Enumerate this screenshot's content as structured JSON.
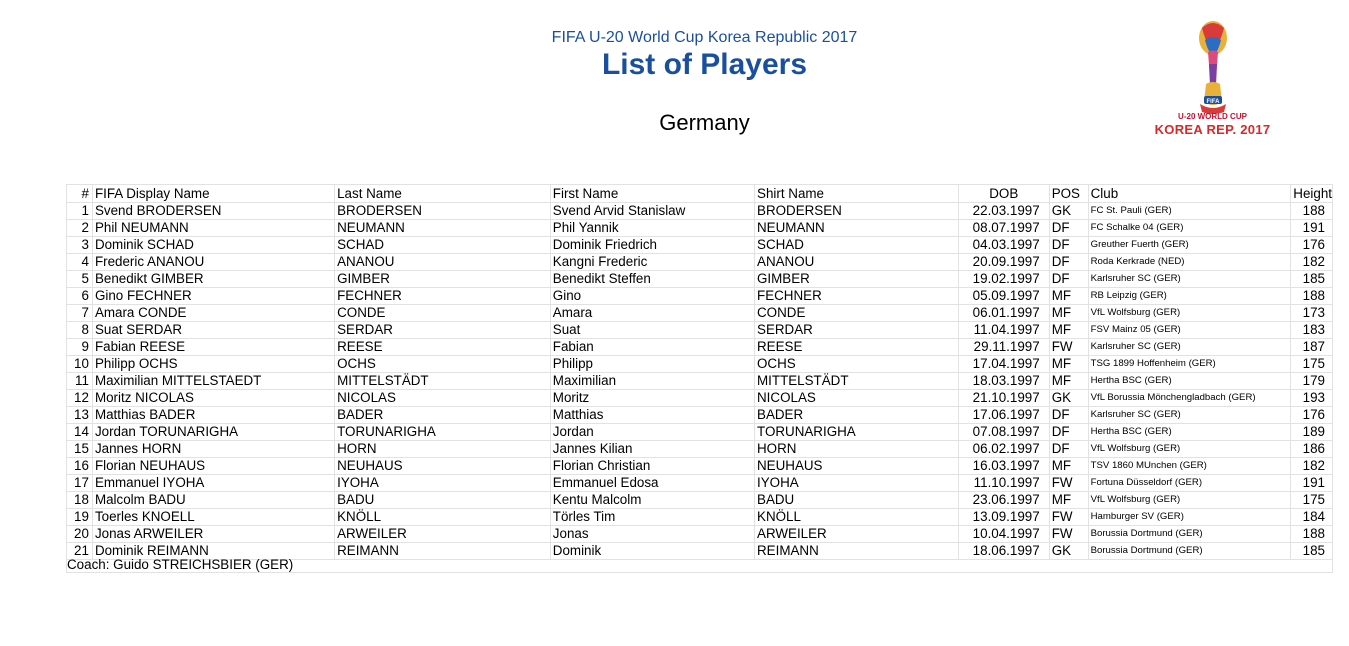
{
  "header": {
    "event": "FIFA U-20 World Cup Korea Republic 2017",
    "title": "List of Players",
    "country": "Germany"
  },
  "logo": {
    "line1": "U-20 WORLD CUP",
    "line2": "KOREA REP. 2017",
    "badge": "FIFA",
    "colors": {
      "primary": "#c8102e",
      "gold": "#e8b23a",
      "blue": "#1a4f9e"
    }
  },
  "table": {
    "columns": [
      "#",
      "FIFA Display Name",
      "Last Name",
      "First Name",
      "Shirt Name",
      "DOB",
      "POS",
      "Club",
      "Height"
    ],
    "rows": [
      [
        "1",
        "Svend BRODERSEN",
        "BRODERSEN",
        "Svend Arvid Stanislaw",
        "BRODERSEN",
        "22.03.1997",
        "GK",
        "FC St. Pauli (GER)",
        "188"
      ],
      [
        "2",
        "Phil NEUMANN",
        "NEUMANN",
        "Phil Yannik",
        "NEUMANN",
        "08.07.1997",
        "DF",
        "FC Schalke 04 (GER)",
        "191"
      ],
      [
        "3",
        "Dominik SCHAD",
        "SCHAD",
        "Dominik Friedrich",
        "SCHAD",
        "04.03.1997",
        "DF",
        "Greuther Fuerth (GER)",
        "176"
      ],
      [
        "4",
        "Frederic ANANOU",
        "ANANOU",
        "Kangni Frederic",
        "ANANOU",
        "20.09.1997",
        "DF",
        "Roda Kerkrade (NED)",
        "182"
      ],
      [
        "5",
        "Benedikt GIMBER",
        "GIMBER",
        "Benedikt Steffen",
        "GIMBER",
        "19.02.1997",
        "DF",
        "Karlsruher SC (GER)",
        "185"
      ],
      [
        "6",
        "Gino FECHNER",
        "FECHNER",
        "Gino",
        "FECHNER",
        "05.09.1997",
        "MF",
        "RB Leipzig (GER)",
        "188"
      ],
      [
        "7",
        "Amara CONDE",
        "CONDE",
        "Amara",
        "CONDE",
        "06.01.1997",
        "MF",
        "VfL Wolfsburg (GER)",
        "173"
      ],
      [
        "8",
        "Suat SERDAR",
        "SERDAR",
        "Suat",
        "SERDAR",
        "11.04.1997",
        "MF",
        "FSV Mainz 05 (GER)",
        "183"
      ],
      [
        "9",
        "Fabian REESE",
        "REESE",
        "Fabian",
        "REESE",
        "29.11.1997",
        "FW",
        "Karlsruher SC (GER)",
        "187"
      ],
      [
        "10",
        "Philipp OCHS",
        "OCHS",
        "Philipp",
        "OCHS",
        "17.04.1997",
        "MF",
        "TSG 1899 Hoffenheim (GER)",
        "175"
      ],
      [
        "11",
        "Maximilian MITTELSTAEDT",
        "MITTELSTÄDT",
        "Maximilian",
        "MITTELSTÄDT",
        "18.03.1997",
        "MF",
        "Hertha BSC (GER)",
        "179"
      ],
      [
        "12",
        "Moritz NICOLAS",
        "NICOLAS",
        "Moritz",
        "NICOLAS",
        "21.10.1997",
        "GK",
        "VfL Borussia Mönchengladbach (GER)",
        "193"
      ],
      [
        "13",
        "Matthias BADER",
        "BADER",
        "Matthias",
        "BADER",
        "17.06.1997",
        "DF",
        "Karlsruher SC (GER)",
        "176"
      ],
      [
        "14",
        "Jordan TORUNARIGHA",
        "TORUNARIGHA",
        "Jordan",
        "TORUNARIGHA",
        "07.08.1997",
        "DF",
        "Hertha BSC (GER)",
        "189"
      ],
      [
        "15",
        "Jannes HORN",
        "HORN",
        "Jannes Kilian",
        "HORN",
        "06.02.1997",
        "DF",
        "VfL Wolfsburg (GER)",
        "186"
      ],
      [
        "16",
        "Florian NEUHAUS",
        "NEUHAUS",
        "Florian Christian",
        "NEUHAUS",
        "16.03.1997",
        "MF",
        "TSV 1860 MUnchen (GER)",
        "182"
      ],
      [
        "17",
        "Emmanuel IYOHA",
        "IYOHA",
        "Emmanuel Edosa",
        "IYOHA",
        "11.10.1997",
        "FW",
        "Fortuna Düsseldorf (GER)",
        "191"
      ],
      [
        "18",
        "Malcolm BADU",
        "BADU",
        "Kentu Malcolm",
        "BADU",
        "23.06.1997",
        "MF",
        "VfL Wolfsburg (GER)",
        "175"
      ],
      [
        "19",
        "Toerles KNOELL",
        "KNÖLL",
        "Törles Tim",
        "KNÖLL",
        "13.09.1997",
        "FW",
        "Hamburger SV (GER)",
        "184"
      ],
      [
        "20",
        "Jonas ARWEILER",
        "ARWEILER",
        "Jonas",
        "ARWEILER",
        "10.04.1997",
        "FW",
        "Borussia Dortmund (GER)",
        "188"
      ],
      [
        "21",
        "Dominik REIMANN",
        "REIMANN",
        "Dominik",
        "REIMANN",
        "18.06.1997",
        "GK",
        "Borussia Dortmund (GER)",
        "185"
      ]
    ]
  },
  "coach": "Coach: Guido STREICHSBIER (GER)"
}
